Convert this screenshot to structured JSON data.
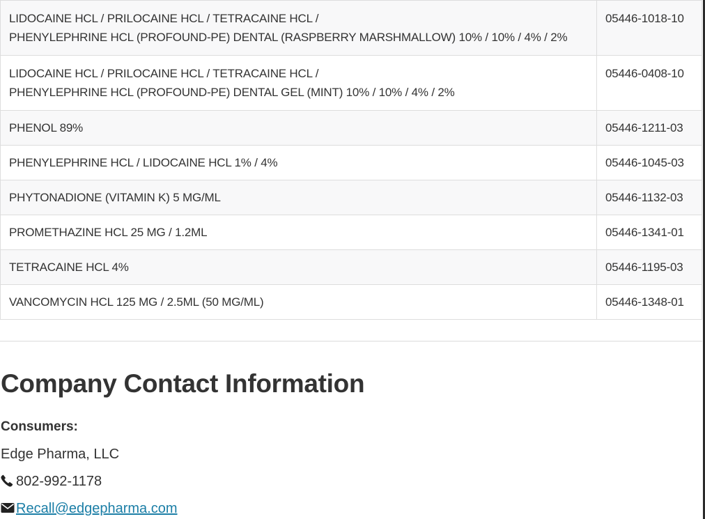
{
  "table": {
    "rows": [
      {
        "product_line1": "LIDOCAINE HCL / PRILOCAINE HCL / TETRACAINE HCL /",
        "product_line2": "PHENYLEPHRINE HCL (PROFOUND-PE) DENTAL (RASPBERRY MARSHMALLOW) 10% / 10% / 4% / 2%",
        "ndc": "05446-1018-10"
      },
      {
        "product_line1": "LIDOCAINE HCL / PRILOCAINE HCL / TETRACAINE HCL /",
        "product_line2": "PHENYLEPHRINE HCL (PROFOUND-PE) DENTAL GEL (MINT) 10% / 10% / 4% / 2%",
        "ndc": "05446-0408-10"
      },
      {
        "product": "PHENOL 89%",
        "ndc": "05446-1211-03"
      },
      {
        "product": "PHENYLEPHRINE HCL / LIDOCAINE HCL 1% / 4%",
        "ndc": "05446-1045-03"
      },
      {
        "product": "PHYTONADIONE (VITAMIN K) 5 MG/ML",
        "ndc": "05446-1132-03"
      },
      {
        "product": "PROMETHAZINE HCL 25 MG / 1.2ML",
        "ndc": "05446-1341-01"
      },
      {
        "product": "TETRACAINE HCL 4%",
        "ndc": "05446-1195-03"
      },
      {
        "product": "VANCOMYCIN HCL 125 MG / 2.5ML (50 MG/ML)",
        "ndc": "05446-1348-01"
      }
    ]
  },
  "contact": {
    "heading": "Company Contact Information",
    "label": "Consumers:",
    "company": "Edge Pharma, LLC",
    "phone": "802-992-1178",
    "email": "Recall@edgepharma.com",
    "phone_icon": "phone-icon",
    "email_icon": "envelope-icon",
    "link_color": "#1b7ea6"
  }
}
